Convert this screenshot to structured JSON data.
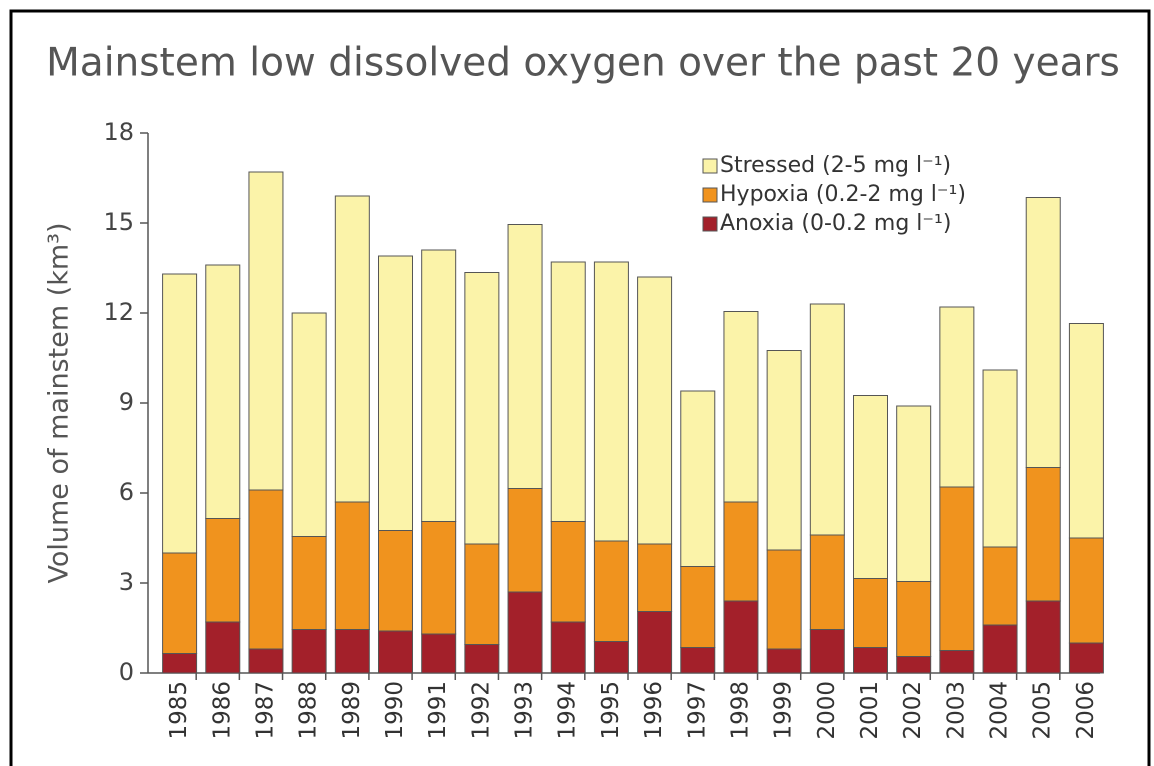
{
  "chart_data": {
    "type": "stacked_bar",
    "title": "Mainstem low dissolved oxygen over the past 20 years",
    "y_label": "Volume of mainstem (km³)",
    "categories": [
      "1985",
      "1986",
      "1987",
      "1988",
      "1989",
      "1990",
      "1991",
      "1992",
      "1993",
      "1994",
      "1995",
      "1996",
      "1997",
      "1998",
      "1999",
      "2000",
      "2001",
      "2002",
      "2003",
      "2004",
      "2005",
      "2006"
    ],
    "series": [
      {
        "name": "Anoxia (0-0.2 mg l⁻¹)",
        "color": "#a3202a",
        "values": [
          0.65,
          1.7,
          0.8,
          1.45,
          1.45,
          1.4,
          1.3,
          0.95,
          2.7,
          1.7,
          1.05,
          2.05,
          0.85,
          2.4,
          0.8,
          1.45,
          0.85,
          0.55,
          0.75,
          1.6,
          2.4,
          1.0
        ]
      },
      {
        "name": "Hypoxia (0.2-2 mg l⁻¹)",
        "color": "#f0931e",
        "values": [
          3.35,
          3.45,
          5.3,
          3.1,
          4.25,
          3.35,
          3.75,
          3.35,
          3.45,
          3.35,
          3.35,
          2.25,
          2.7,
          3.3,
          3.3,
          3.15,
          2.3,
          2.5,
          5.45,
          2.6,
          4.45,
          3.5
        ]
      },
      {
        "name": "Stressed (2-5 mg l⁻¹)",
        "color": "#fbf3a9",
        "values": [
          9.3,
          8.45,
          10.6,
          7.45,
          10.2,
          9.15,
          9.05,
          9.05,
          8.8,
          8.65,
          9.3,
          8.9,
          5.85,
          6.35,
          6.65,
          7.7,
          6.1,
          5.85,
          6.0,
          5.9,
          9.0,
          7.15
        ]
      }
    ],
    "ylim": [
      0,
      18
    ],
    "yticks": [
      0,
      3,
      6,
      9,
      12,
      15,
      18
    ],
    "legend": "upper right"
  }
}
